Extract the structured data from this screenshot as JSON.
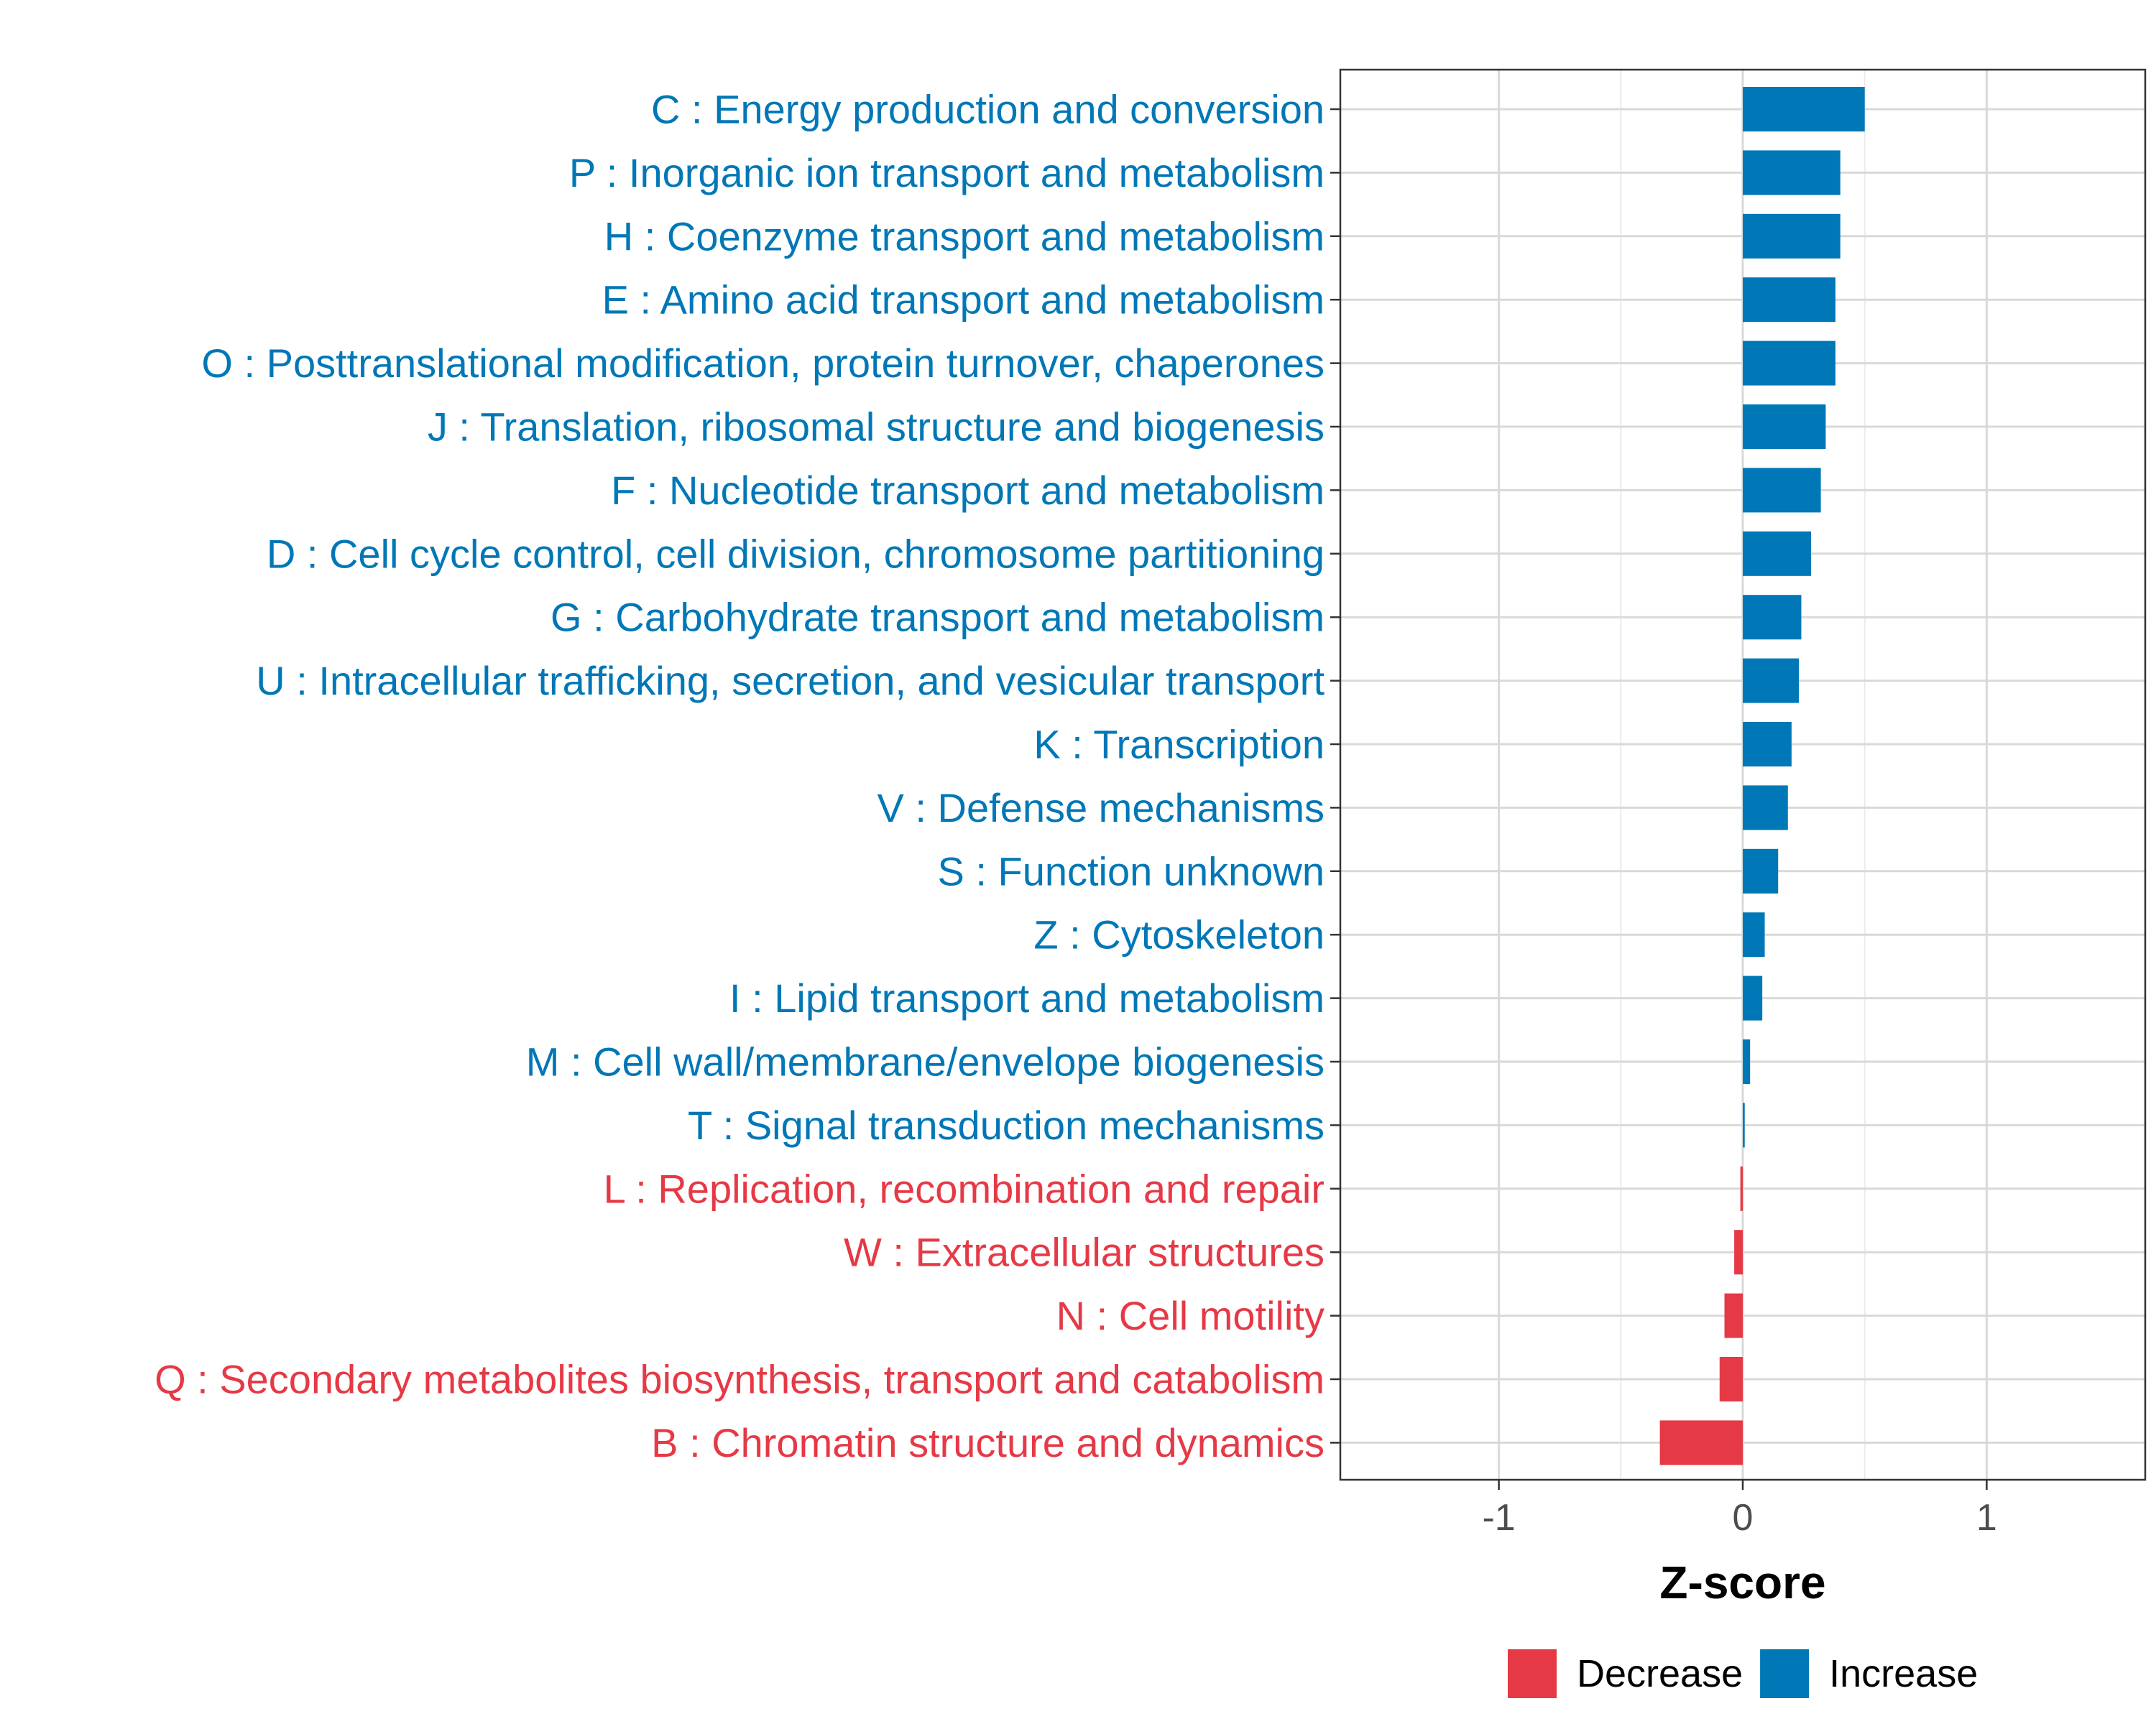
{
  "chart_data": {
    "type": "bar",
    "orientation": "horizontal",
    "xlabel": "Z-score",
    "xlim": [
      -1.65,
      1.65
    ],
    "xticks": [
      -1,
      0,
      1
    ],
    "xtick_labels": [
      "-1",
      "0",
      "1"
    ],
    "grid": true,
    "legend_position": "bottom",
    "legend": [
      {
        "label": "Decrease",
        "color": "#E63946"
      },
      {
        "label": "Increase",
        "color": "#0077B6"
      }
    ],
    "categories": [
      "C : Energy production and conversion",
      "P : Inorganic ion transport and metabolism",
      "H : Coenzyme transport and metabolism",
      "E : Amino acid transport and metabolism",
      "O : Posttranslational modification, protein turnover, chaperones",
      "J : Translation, ribosomal structure and biogenesis",
      "F : Nucleotide transport and metabolism",
      "D : Cell cycle control, cell division, chromosome partitioning",
      "G : Carbohydrate transport and metabolism",
      "U : Intracellular trafficking, secretion, and vesicular transport",
      "K : Transcription",
      "V : Defense mechanisms",
      "S : Function unknown",
      "Z : Cytoskeleton",
      "I : Lipid transport and metabolism",
      "M : Cell wall/membrane/envelope biogenesis",
      "T : Signal transduction mechanisms",
      "L : Replication, recombination and repair",
      "W : Extracellular structures",
      "N : Cell motility",
      "Q : Secondary metabolites biosynthesis, transport and catabolism",
      "B : Chromatin structure and dynamics"
    ],
    "values": [
      0.5,
      0.4,
      0.4,
      0.38,
      0.38,
      0.34,
      0.32,
      0.28,
      0.24,
      0.23,
      0.2,
      0.185,
      0.145,
      0.09,
      0.08,
      0.03,
      0.008,
      -0.01,
      -0.035,
      -0.075,
      -0.095,
      -0.34
    ]
  }
}
